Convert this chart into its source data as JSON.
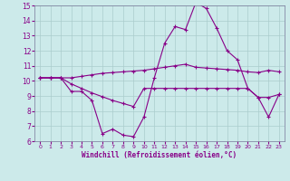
{
  "title": "",
  "xlabel": "Windchill (Refroidissement éolien,°C)",
  "bg_color": "#cceaea",
  "grid_color": "#aacccc",
  "line_color": "#880088",
  "xlim": [
    -0.5,
    23.5
  ],
  "ylim": [
    6,
    15
  ],
  "yticks": [
    6,
    7,
    8,
    9,
    10,
    11,
    12,
    13,
    14,
    15
  ],
  "xticks": [
    0,
    1,
    2,
    3,
    4,
    5,
    6,
    7,
    8,
    9,
    10,
    11,
    12,
    13,
    14,
    15,
    16,
    17,
    18,
    19,
    20,
    21,
    22,
    23
  ],
  "line1_x": [
    0,
    1,
    2,
    3,
    4,
    5,
    6,
    7,
    8,
    9,
    10,
    11,
    12,
    13,
    14,
    15,
    16,
    17,
    18,
    19,
    20,
    21,
    22,
    23
  ],
  "line1_y": [
    10.2,
    10.2,
    10.2,
    10.2,
    10.3,
    10.4,
    10.5,
    10.55,
    10.6,
    10.65,
    10.7,
    10.8,
    10.9,
    11.0,
    11.1,
    10.9,
    10.85,
    10.8,
    10.75,
    10.7,
    10.6,
    10.55,
    10.7,
    10.6
  ],
  "line2_x": [
    0,
    1,
    2,
    3,
    4,
    5,
    6,
    7,
    8,
    9,
    10,
    11,
    12,
    13,
    14,
    15,
    16,
    17,
    18,
    19,
    20,
    21,
    22,
    23
  ],
  "line2_y": [
    10.2,
    10.2,
    10.2,
    9.3,
    9.3,
    8.7,
    6.5,
    6.8,
    6.4,
    6.3,
    7.6,
    10.2,
    12.5,
    13.6,
    13.4,
    15.2,
    14.8,
    13.5,
    12.0,
    11.4,
    9.5,
    8.9,
    7.6,
    9.1
  ],
  "line3_x": [
    0,
    1,
    2,
    3,
    4,
    5,
    6,
    7,
    8,
    9,
    10,
    11,
    12,
    13,
    14,
    15,
    16,
    17,
    18,
    19,
    20,
    21,
    22,
    23
  ],
  "line3_y": [
    10.2,
    10.2,
    10.2,
    9.8,
    9.5,
    9.2,
    8.95,
    8.7,
    8.5,
    8.3,
    9.5,
    9.5,
    9.5,
    9.5,
    9.5,
    9.5,
    9.5,
    9.5,
    9.5,
    9.5,
    9.5,
    8.9,
    8.9,
    9.1
  ]
}
